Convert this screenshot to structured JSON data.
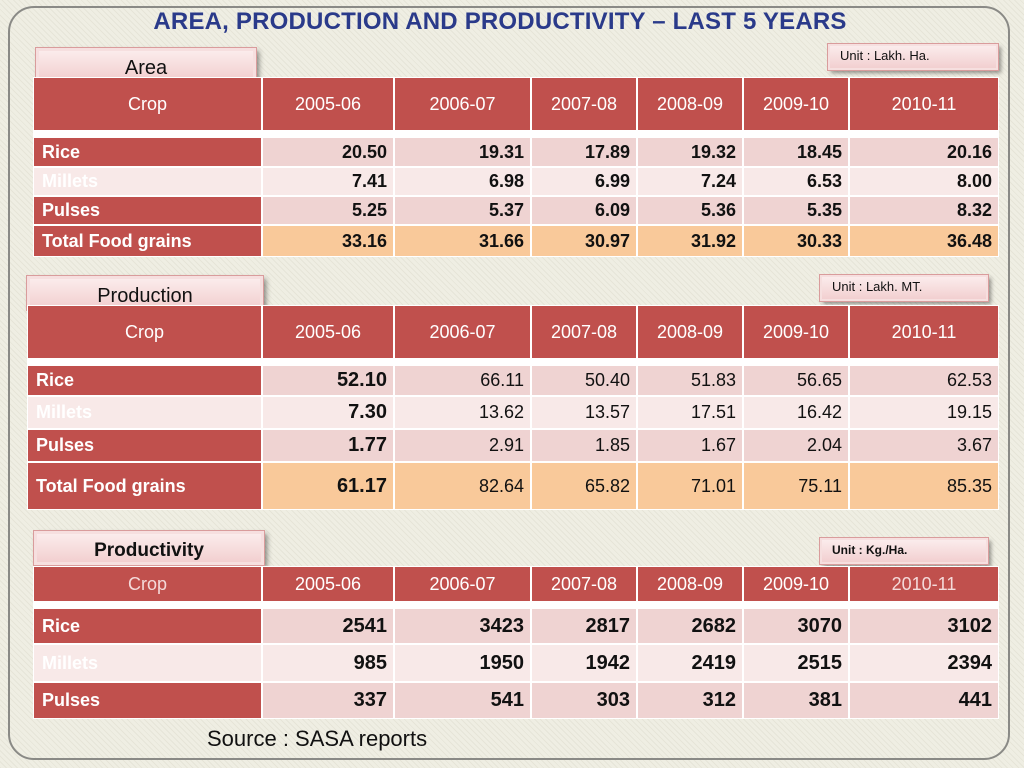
{
  "title": "AREA, PRODUCTION AND PRODUCTIVITY – LAST 5 YEARS",
  "colors": {
    "header": "#c0504d",
    "title": "#2a3a8a",
    "total_row": "#f9c99a"
  },
  "source": "Source : SASA reports",
  "area": {
    "label": "Area",
    "unit": "Unit : Lakh. Ha.",
    "headers": [
      "Crop",
      "2005-06",
      "2006-07",
      "2007-08",
      "2008-09",
      "2009-10",
      "2010-11"
    ],
    "rows": [
      {
        "crop": "Rice",
        "values": [
          "20.50",
          "19.31",
          "17.89",
          "19.32",
          "18.45",
          "20.16"
        ]
      },
      {
        "crop": "Millets",
        "values": [
          "7.41",
          "6.98",
          "6.99",
          "7.24",
          "6.53",
          "8.00"
        ]
      },
      {
        "crop": "Pulses",
        "values": [
          "5.25",
          "5.37",
          "6.09",
          "5.36",
          "5.35",
          "8.32"
        ]
      },
      {
        "crop": "Total Food grains",
        "values": [
          "33.16",
          "31.66",
          "30.97",
          "31.92",
          "30.33",
          "36.48"
        ]
      }
    ]
  },
  "production": {
    "label": "Production",
    "unit": "Unit : Lakh. MT.",
    "headers": [
      "Crop",
      "2005-06",
      "2006-07",
      "2007-08",
      "2008-09",
      "2009-10",
      "2010-11"
    ],
    "rows": [
      {
        "crop": "Rice",
        "values": [
          "52.10",
          "66.11",
          "50.40",
          "51.83",
          "56.65",
          "62.53"
        ]
      },
      {
        "crop": "Millets",
        "values": [
          "7.30",
          "13.62",
          "13.57",
          "17.51",
          "16.42",
          "19.15"
        ]
      },
      {
        "crop": "Pulses",
        "values": [
          "1.77",
          "2.91",
          "1.85",
          "1.67",
          "2.04",
          "3.67"
        ]
      },
      {
        "crop": "Total Food grains",
        "values": [
          "61.17",
          "82.64",
          "65.82",
          "71.01",
          "75.11",
          "85.35"
        ]
      }
    ]
  },
  "productivity": {
    "label": "Productivity",
    "unit": "Unit : Kg./Ha.",
    "headers": [
      "Crop",
      "2005-06",
      "2006-07",
      "2007-08",
      "2008-09",
      "2009-10",
      "2010-11"
    ],
    "rows": [
      {
        "crop": "Rice",
        "values": [
          "2541",
          "3423",
          "2817",
          "2682",
          "3070",
          "3102"
        ]
      },
      {
        "crop": "Millets",
        "values": [
          "985",
          "1950",
          "1942",
          "2419",
          "2515",
          "2394"
        ]
      },
      {
        "crop": "Pulses",
        "values": [
          "337",
          "541",
          "303",
          "312",
          "381",
          "441"
        ]
      }
    ]
  }
}
